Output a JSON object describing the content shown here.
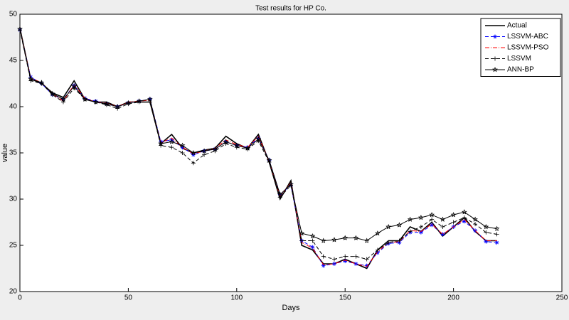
{
  "chart_data": {
    "type": "line",
    "title": "Test results for HP Co.",
    "x_label": "Days",
    "y_label": "value",
    "x": [
      0,
      5,
      10,
      15,
      20,
      25,
      30,
      35,
      40,
      45,
      50,
      55,
      60,
      65,
      70,
      75,
      80,
      85,
      90,
      95,
      100,
      105,
      110,
      115,
      120,
      125,
      130,
      135,
      140,
      145,
      150,
      155,
      160,
      165,
      170,
      175,
      180,
      185,
      190,
      195,
      200,
      205,
      210,
      215,
      220
    ],
    "series": [
      {
        "name": "Actual",
        "color": "#000000",
        "linestyle": "solid",
        "marker": "none",
        "values": [
          48.5,
          43,
          42.5,
          41.5,
          41,
          42.8,
          40.8,
          40.5,
          40.5,
          40,
          40.5,
          40.5,
          40.5,
          36,
          37,
          35.5,
          35,
          35.3,
          35.5,
          36.8,
          36,
          35.5,
          37,
          34,
          30,
          32,
          25,
          24.5,
          23,
          23,
          23.5,
          23,
          22.5,
          24.5,
          25.5,
          25.5,
          27,
          26.5,
          27.5,
          26,
          27,
          28,
          26.5,
          25.5,
          25.5
        ]
      },
      {
        "name": "LSSVM-ABC",
        "color": "#0000ff",
        "linestyle": "dashed",
        "marker": "asterisk",
        "values": [
          48.3,
          43.2,
          42.5,
          41.3,
          40.8,
          42.3,
          40.9,
          40.6,
          40.3,
          40,
          40.4,
          40.6,
          40.8,
          36.2,
          36.4,
          35.6,
          34.8,
          35.2,
          35.4,
          36.2,
          35.8,
          35.6,
          36.6,
          34.2,
          30.5,
          31.5,
          25.5,
          24.8,
          22.8,
          23,
          23.3,
          23,
          22.8,
          24.2,
          25.2,
          25.3,
          26.4,
          26.4,
          27.2,
          26.2,
          27,
          27.6,
          26.6,
          25.4,
          25.3
        ]
      },
      {
        "name": "LSSVM-PSO",
        "color": "#ff0000",
        "linestyle": "dashdot",
        "marker": "none",
        "values": [
          48.4,
          43.1,
          42.6,
          41.4,
          40.6,
          42.4,
          40.9,
          40.5,
          40.4,
          40,
          40.5,
          40.6,
          40.7,
          36.1,
          36.6,
          35.6,
          34.9,
          35.2,
          35.5,
          36.4,
          35.9,
          35.6,
          36.8,
          34.1,
          30.3,
          31.8,
          25.3,
          24.7,
          22.9,
          23,
          23.4,
          23,
          22.7,
          24.3,
          25.3,
          25.4,
          26.6,
          26.5,
          27.3,
          26.2,
          27,
          27.8,
          26.6,
          25.5,
          25.5
        ]
      },
      {
        "name": "LSSVM",
        "color": "#000000",
        "linestyle": "dashed",
        "marker": "plus",
        "values": [
          48.3,
          42.8,
          42.5,
          41.3,
          40.5,
          42,
          40.8,
          40.5,
          40.2,
          39.8,
          40.3,
          40.5,
          40.5,
          35.8,
          35.6,
          35,
          33.9,
          34.8,
          35.2,
          36,
          35.6,
          35.4,
          36.3,
          34,
          30.2,
          31.5,
          25.5,
          25.5,
          23.8,
          23.5,
          23.8,
          23.8,
          23.5,
          24.5,
          25.3,
          25.5,
          26.5,
          27,
          27.8,
          27,
          27.5,
          28,
          27.3,
          26.4,
          26.2
        ]
      },
      {
        "name": "ANN-BP",
        "color": "#000000",
        "linestyle": "solid",
        "marker": "star",
        "values": [
          48.4,
          43,
          42.6,
          41.4,
          40.8,
          42.2,
          40.8,
          40.5,
          40.3,
          40,
          40.4,
          40.6,
          40.8,
          36,
          36.2,
          35.8,
          35,
          35.2,
          35.4,
          36.2,
          35.8,
          35.5,
          36.5,
          34.2,
          30.5,
          31.6,
          26.3,
          26,
          25.5,
          25.6,
          25.8,
          25.8,
          25.5,
          26.3,
          27,
          27.2,
          27.8,
          28,
          28.3,
          27.8,
          28.3,
          28.6,
          27.8,
          27,
          26.8
        ]
      }
    ],
    "xlim": [
      0,
      250
    ],
    "xticks": [
      0,
      50,
      100,
      150,
      200,
      250
    ],
    "ylim": [
      20,
      50
    ],
    "yticks": [
      20,
      25,
      30,
      35,
      40,
      45,
      50
    ],
    "grid": false,
    "legend": "top-right"
  }
}
